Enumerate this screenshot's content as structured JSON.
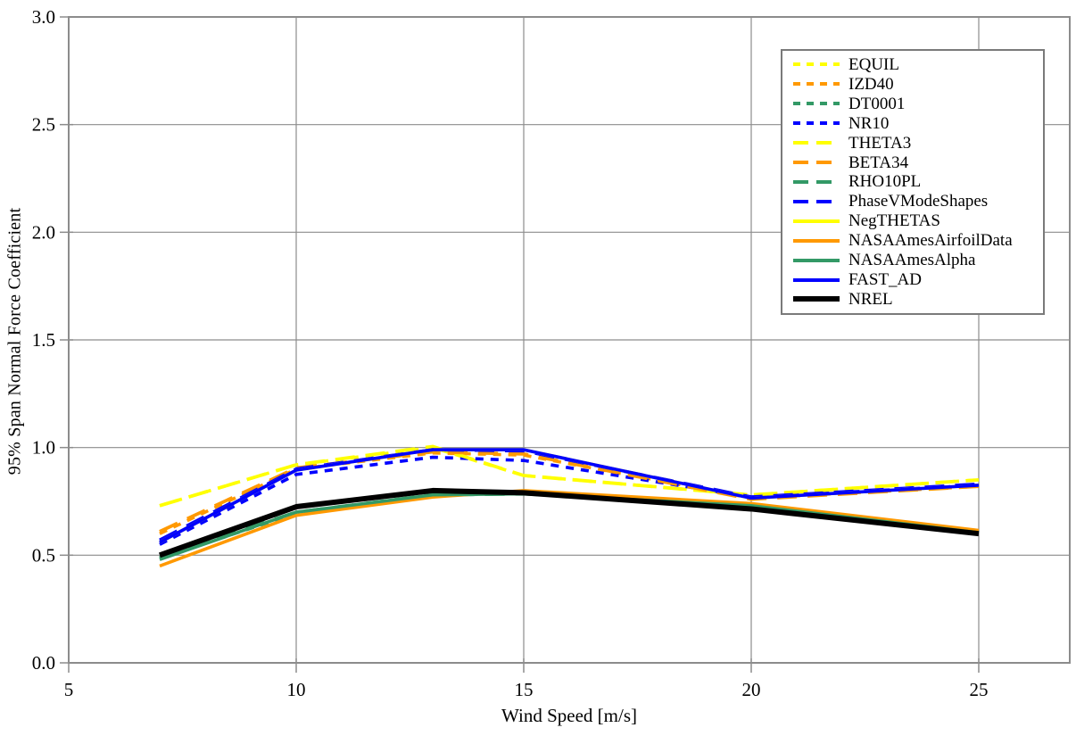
{
  "chart_data": {
    "type": "line",
    "title": "",
    "xlabel": "Wind Speed [m/s]",
    "ylabel": "95% Span Normal Force Coefficient",
    "xlim": [
      5,
      27
    ],
    "ylim": [
      0,
      3
    ],
    "xticks": [
      5,
      10,
      15,
      20,
      25
    ],
    "xtick_labels": [
      "5",
      "10",
      "15",
      "20",
      "25"
    ],
    "yticks": [
      0,
      0.5,
      1,
      1.5,
      2,
      2.5,
      3
    ],
    "ytick_labels": [
      "0.0",
      "0.5",
      "1.0",
      "1.5",
      "2.0",
      "2.5",
      "3.0"
    ],
    "grid": true,
    "grid_color": "#8c8c8c",
    "axis_color": "#8c8c8c",
    "legend_position": "top-right",
    "x": [
      7,
      10,
      13,
      15,
      20,
      25
    ],
    "series": [
      {
        "name": "EQUIL",
        "color": "#FFFF00",
        "dash": "short",
        "width": 3.6,
        "values": [
          0.73,
          0.92,
          1.0,
          0.87,
          0.78,
          0.85
        ]
      },
      {
        "name": "IZD40",
        "color": "#FF9900",
        "dash": "short",
        "width": 3.6,
        "values": [
          0.6,
          0.9,
          0.975,
          0.965,
          0.765,
          0.82
        ]
      },
      {
        "name": "DT0001",
        "color": "#339966",
        "dash": "short",
        "width": 3.6,
        "values": [
          0.485,
          0.695,
          0.78,
          0.785,
          0.73,
          0.61
        ]
      },
      {
        "name": "NR10",
        "color": "#0000FF",
        "dash": "short",
        "width": 3.6,
        "values": [
          0.55,
          0.875,
          0.955,
          0.94,
          0.77,
          0.825
        ]
      },
      {
        "name": "THETA3",
        "color": "#FFFF00",
        "dash": "long",
        "width": 3.8,
        "values": [
          0.73,
          0.92,
          1.005,
          0.87,
          0.78,
          0.85
        ]
      },
      {
        "name": "BETA34",
        "color": "#FF9900",
        "dash": "long",
        "width": 3.8,
        "values": [
          0.61,
          0.905,
          0.98,
          0.97,
          0.76,
          0.82
        ]
      },
      {
        "name": "RHO10PL",
        "color": "#339966",
        "dash": "long",
        "width": 3.8,
        "values": [
          0.49,
          0.7,
          0.78,
          0.785,
          0.73,
          0.61
        ]
      },
      {
        "name": "PhaseVModeShapes",
        "color": "#0000FF",
        "dash": "long",
        "width": 3.8,
        "values": [
          0.57,
          0.9,
          0.99,
          0.985,
          0.77,
          0.83
        ]
      },
      {
        "name": "NegTHETAS",
        "color": "#FFFF00",
        "dash": "solid",
        "width": 3.6,
        "values": [
          0.56,
          0.895,
          0.99,
          0.99,
          0.765,
          0.825
        ]
      },
      {
        "name": "NASAAmesAirfoilData",
        "color": "#FF9900",
        "dash": "solid",
        "width": 3.6,
        "values": [
          0.45,
          0.685,
          0.77,
          0.8,
          0.74,
          0.615
        ]
      },
      {
        "name": "NASAAmesAlpha",
        "color": "#339966",
        "dash": "solid",
        "width": 3.6,
        "values": [
          0.48,
          0.7,
          0.78,
          0.785,
          0.73,
          0.605
        ]
      },
      {
        "name": "FAST_AD",
        "color": "#0000FF",
        "dash": "solid",
        "width": 3.6,
        "values": [
          0.56,
          0.895,
          0.99,
          0.99,
          0.765,
          0.825
        ]
      },
      {
        "name": "NREL",
        "color": "#000000",
        "dash": "solid",
        "width": 6.0,
        "values": [
          0.5,
          0.725,
          0.8,
          0.79,
          0.715,
          0.6
        ]
      }
    ]
  }
}
